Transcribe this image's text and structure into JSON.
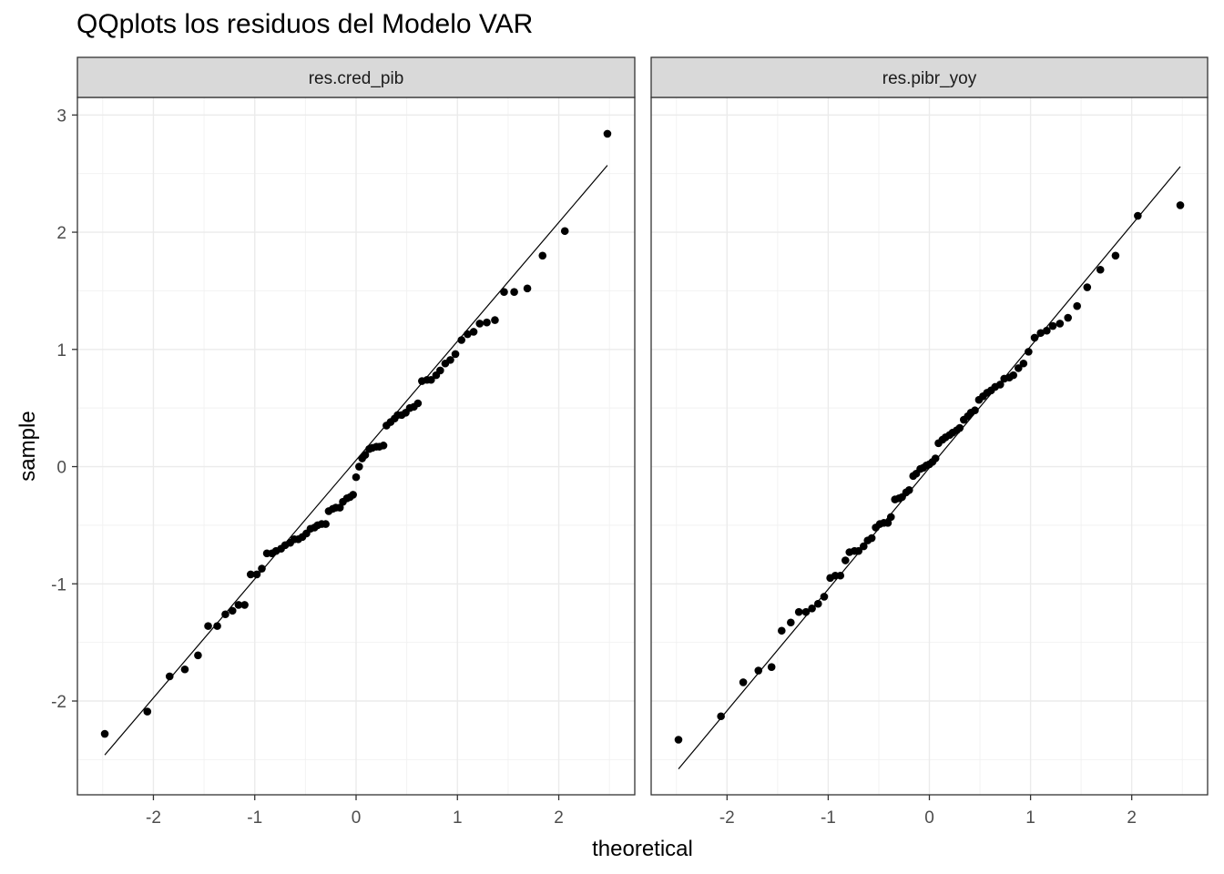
{
  "chart_data": {
    "type": "scatter",
    "title": "QQplots los residuos del Modelo VAR",
    "xlabel": "theoretical",
    "ylabel": "sample",
    "xlim": [
      -2.75,
      2.75
    ],
    "ylim": [
      -2.8,
      3.15
    ],
    "x_ticks": [
      "-2",
      "-1",
      "0",
      "1",
      "2"
    ],
    "y_ticks": [
      "-2",
      "-1",
      "0",
      "1",
      "2",
      "3"
    ],
    "x_tick_values": [
      -2,
      -1,
      0,
      1,
      2
    ],
    "y_tick_values": [
      -2,
      -1,
      0,
      1,
      2,
      3
    ],
    "grid": true,
    "facets": [
      {
        "name": "res.cred_pib",
        "reference_line": {
          "x": [
            -2.48,
            2.48
          ],
          "y": [
            -2.46,
            2.57
          ]
        },
        "points": [
          [
            -2.48,
            -2.28
          ],
          [
            -2.06,
            -2.09
          ],
          [
            -1.84,
            -1.79
          ],
          [
            -1.69,
            -1.73
          ],
          [
            -1.56,
            -1.61
          ],
          [
            -1.46,
            -1.36
          ],
          [
            -1.37,
            -1.36
          ],
          [
            -1.29,
            -1.26
          ],
          [
            -1.22,
            -1.23
          ],
          [
            -1.16,
            -1.18
          ],
          [
            -1.1,
            -1.18
          ],
          [
            -1.04,
            -0.92
          ],
          [
            -0.98,
            -0.92
          ],
          [
            -0.93,
            -0.87
          ],
          [
            -0.88,
            -0.74
          ],
          [
            -0.83,
            -0.74
          ],
          [
            -0.79,
            -0.72
          ],
          [
            -0.74,
            -0.7
          ],
          [
            -0.7,
            -0.67
          ],
          [
            -0.65,
            -0.65
          ],
          [
            -0.61,
            -0.62
          ],
          [
            -0.57,
            -0.62
          ],
          [
            -0.53,
            -0.6
          ],
          [
            -0.49,
            -0.57
          ],
          [
            -0.45,
            -0.53
          ],
          [
            -0.41,
            -0.52
          ],
          [
            -0.38,
            -0.5
          ],
          [
            -0.34,
            -0.49
          ],
          [
            -0.3,
            -0.49
          ],
          [
            -0.27,
            -0.38
          ],
          [
            -0.23,
            -0.36
          ],
          [
            -0.2,
            -0.35
          ],
          [
            -0.16,
            -0.35
          ],
          [
            -0.13,
            -0.3
          ],
          [
            -0.09,
            -0.27
          ],
          [
            -0.06,
            -0.26
          ],
          [
            -0.03,
            -0.24
          ],
          [
            0.0,
            -0.09
          ],
          [
            0.03,
            0.0
          ],
          [
            0.06,
            0.07
          ],
          [
            0.09,
            0.1
          ],
          [
            0.13,
            0.15
          ],
          [
            0.16,
            0.16
          ],
          [
            0.2,
            0.17
          ],
          [
            0.23,
            0.17
          ],
          [
            0.27,
            0.18
          ],
          [
            0.3,
            0.35
          ],
          [
            0.34,
            0.38
          ],
          [
            0.38,
            0.41
          ],
          [
            0.41,
            0.44
          ],
          [
            0.45,
            0.44
          ],
          [
            0.49,
            0.46
          ],
          [
            0.53,
            0.5
          ],
          [
            0.57,
            0.51
          ],
          [
            0.61,
            0.54
          ],
          [
            0.65,
            0.73
          ],
          [
            0.7,
            0.74
          ],
          [
            0.74,
            0.74
          ],
          [
            0.79,
            0.78
          ],
          [
            0.83,
            0.82
          ],
          [
            0.88,
            0.88
          ],
          [
            0.93,
            0.91
          ],
          [
            0.98,
            0.96
          ],
          [
            1.04,
            1.08
          ],
          [
            1.1,
            1.13
          ],
          [
            1.16,
            1.15
          ],
          [
            1.22,
            1.22
          ],
          [
            1.29,
            1.23
          ],
          [
            1.37,
            1.25
          ],
          [
            1.46,
            1.49
          ],
          [
            1.56,
            1.49
          ],
          [
            1.69,
            1.52
          ],
          [
            1.84,
            1.8
          ],
          [
            2.06,
            2.01
          ],
          [
            2.48,
            2.84
          ]
        ]
      },
      {
        "name": "res.pibr_yoy",
        "reference_line": {
          "x": [
            -2.48,
            2.48
          ],
          "y": [
            -2.58,
            2.56
          ]
        },
        "points": [
          [
            -2.48,
            -2.33
          ],
          [
            -2.06,
            -2.13
          ],
          [
            -1.84,
            -1.84
          ],
          [
            -1.69,
            -1.74
          ],
          [
            -1.56,
            -1.71
          ],
          [
            -1.46,
            -1.4
          ],
          [
            -1.37,
            -1.33
          ],
          [
            -1.29,
            -1.24
          ],
          [
            -1.22,
            -1.24
          ],
          [
            -1.16,
            -1.21
          ],
          [
            -1.1,
            -1.17
          ],
          [
            -1.04,
            -1.11
          ],
          [
            -0.98,
            -0.95
          ],
          [
            -0.93,
            -0.93
          ],
          [
            -0.88,
            -0.93
          ],
          [
            -0.83,
            -0.8
          ],
          [
            -0.79,
            -0.73
          ],
          [
            -0.74,
            -0.72
          ],
          [
            -0.7,
            -0.72
          ],
          [
            -0.65,
            -0.68
          ],
          [
            -0.61,
            -0.63
          ],
          [
            -0.57,
            -0.61
          ],
          [
            -0.53,
            -0.52
          ],
          [
            -0.49,
            -0.49
          ],
          [
            -0.45,
            -0.48
          ],
          [
            -0.41,
            -0.48
          ],
          [
            -0.38,
            -0.43
          ],
          [
            -0.34,
            -0.28
          ],
          [
            -0.3,
            -0.27
          ],
          [
            -0.27,
            -0.26
          ],
          [
            -0.23,
            -0.22
          ],
          [
            -0.2,
            -0.2
          ],
          [
            -0.16,
            -0.08
          ],
          [
            -0.13,
            -0.06
          ],
          [
            -0.09,
            -0.02
          ],
          [
            -0.06,
            -0.01
          ],
          [
            -0.03,
            0.01
          ],
          [
            0.0,
            0.02
          ],
          [
            0.03,
            0.04
          ],
          [
            0.06,
            0.07
          ],
          [
            0.09,
            0.2
          ],
          [
            0.13,
            0.23
          ],
          [
            0.16,
            0.25
          ],
          [
            0.2,
            0.27
          ],
          [
            0.23,
            0.29
          ],
          [
            0.27,
            0.31
          ],
          [
            0.3,
            0.33
          ],
          [
            0.34,
            0.4
          ],
          [
            0.38,
            0.43
          ],
          [
            0.41,
            0.46
          ],
          [
            0.45,
            0.48
          ],
          [
            0.49,
            0.57
          ],
          [
            0.53,
            0.6
          ],
          [
            0.57,
            0.63
          ],
          [
            0.61,
            0.65
          ],
          [
            0.65,
            0.68
          ],
          [
            0.7,
            0.7
          ],
          [
            0.74,
            0.75
          ],
          [
            0.79,
            0.76
          ],
          [
            0.83,
            0.78
          ],
          [
            0.88,
            0.84
          ],
          [
            0.93,
            0.88
          ],
          [
            0.98,
            0.98
          ],
          [
            1.04,
            1.1
          ],
          [
            1.1,
            1.14
          ],
          [
            1.16,
            1.16
          ],
          [
            1.22,
            1.2
          ],
          [
            1.29,
            1.22
          ],
          [
            1.37,
            1.27
          ],
          [
            1.46,
            1.37
          ],
          [
            1.56,
            1.53
          ],
          [
            1.69,
            1.68
          ],
          [
            1.84,
            1.8
          ],
          [
            2.06,
            2.14
          ],
          [
            2.48,
            2.23
          ]
        ]
      }
    ]
  }
}
